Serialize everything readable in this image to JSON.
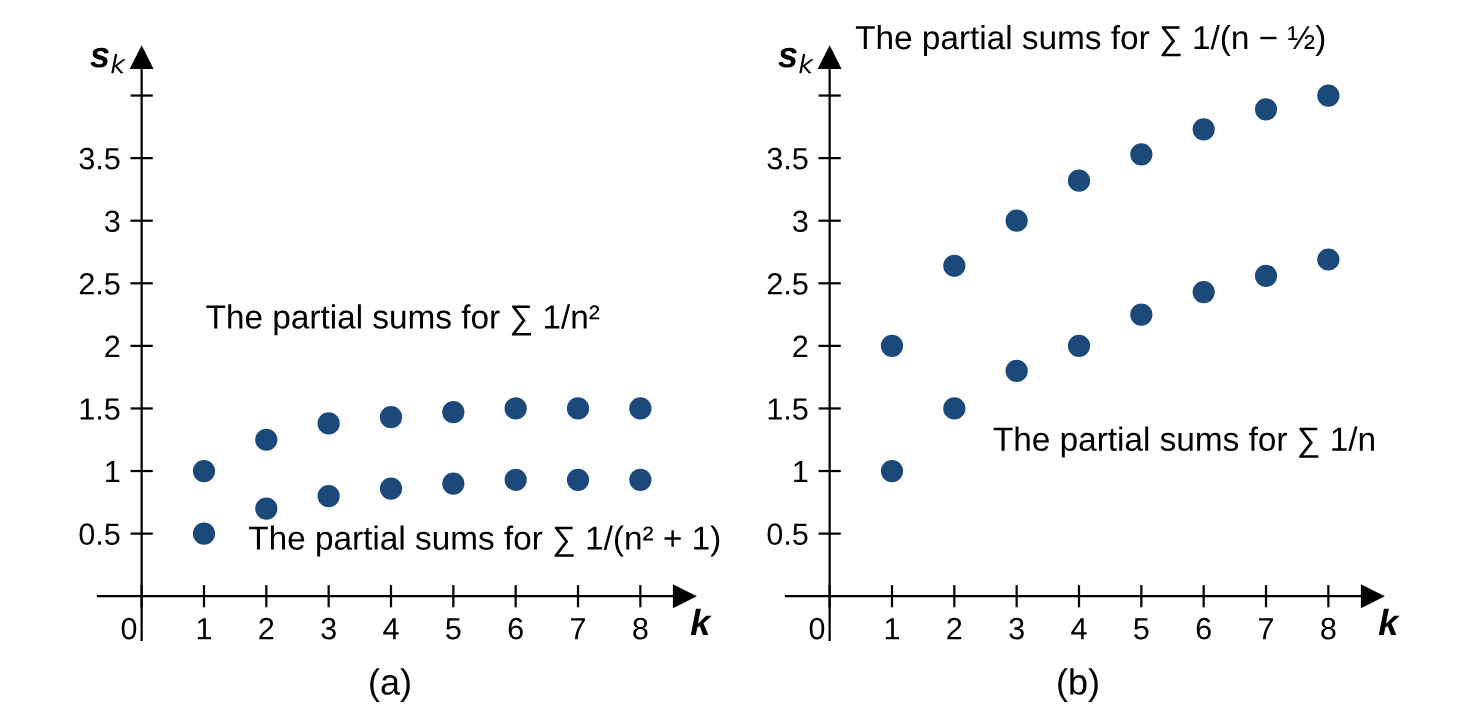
{
  "chart_data": [
    {
      "type": "scatter",
      "title": "(a)",
      "xlabel": "k",
      "ylabel": "s$_{k}$",
      "marker": "circle",
      "grid": false,
      "x": [
        1,
        2,
        3,
        4,
        5,
        6,
        7,
        8
      ],
      "xlim": [
        -0.7,
        8.7
      ],
      "ylim": [
        -0.35,
        4.3
      ],
      "xticks": [
        {
          "value": 0,
          "label": "0"
        },
        1,
        2,
        3,
        4,
        5,
        6,
        7,
        8
      ],
      "yticks": [
        0.5,
        1,
        1.5,
        2,
        2.5,
        3,
        3.5,
        {
          "value": 4,
          "label": null
        }
      ],
      "series": [
        {
          "name": "The partial sums for ∑ 1/n²",
          "color": "#1b4a7a",
          "values": [
            1,
            1.25,
            1.38,
            1.43,
            1.47,
            1.5,
            1.5,
            1.5
          ]
        },
        {
          "name": "The partial sums for ∑ 1/(n² + 1)",
          "color": "#1b4a7a",
          "values": [
            0.5,
            0.7,
            0.8,
            0.86,
            0.9,
            0.93,
            0.93,
            0.93
          ]
        }
      ]
    },
    {
      "type": "scatter",
      "title": "(b)",
      "xlabel": "k",
      "ylabel": "s$_{k}$",
      "marker": "circle",
      "grid": false,
      "x": [
        1,
        2,
        3,
        4,
        5,
        6,
        7,
        8
      ],
      "xlim": [
        -0.7,
        8.7
      ],
      "ylim": [
        -0.35,
        4.3
      ],
      "xticks": [
        {
          "value": 0,
          "label": "0"
        },
        1,
        2,
        3,
        4,
        5,
        6,
        7,
        8
      ],
      "yticks": [
        0.5,
        1,
        1.5,
        2,
        2.5,
        3,
        3.5,
        {
          "value": 4,
          "label": null
        }
      ],
      "series": [
        {
          "name": "The partial sums for ∑ 1/(n − ½)",
          "color": "#1b4a7a",
          "values": [
            2,
            2.64,
            3,
            3.32,
            3.53,
            3.73,
            3.89,
            4.0
          ]
        },
        {
          "name": "The partial sums for ∑ 1/n",
          "color": "#1b4a7a",
          "values": [
            1,
            1.5,
            1.8,
            2,
            2.25,
            2.43,
            2.56,
            2.69
          ]
        }
      ]
    }
  ]
}
